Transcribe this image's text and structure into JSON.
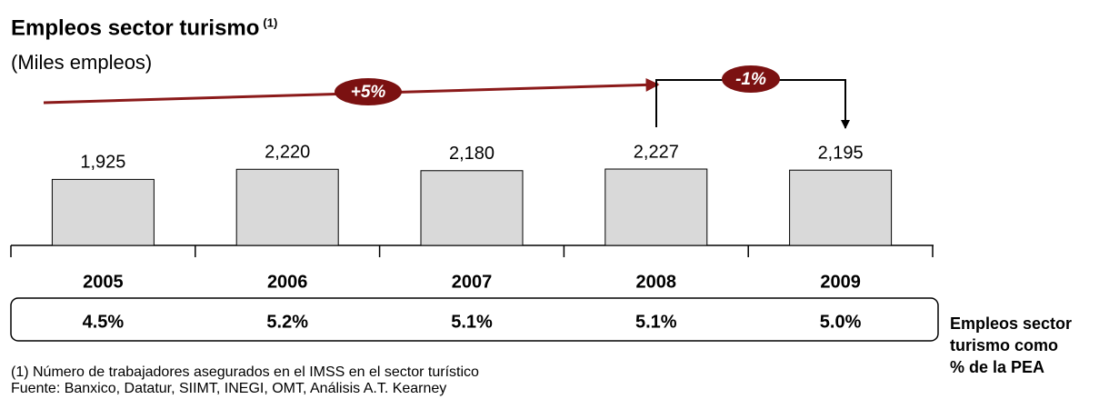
{
  "chart_data": {
    "type": "bar",
    "title": "Empleos sector turismo",
    "title_note": "(1)",
    "subtitle": "(Miles empleos)",
    "categories": [
      "2005",
      "2006",
      "2007",
      "2008",
      "2009"
    ],
    "values": [
      1925,
      2220,
      2180,
      2227,
      2195
    ],
    "value_labels": [
      "1,925",
      "2,220",
      "2,180",
      "2,227",
      "2,195"
    ],
    "color": "#d9d9d9",
    "annotations": [
      "+5%",
      "-1%"
    ],
    "share_row": {
      "label_lines": [
        "Empleos sector",
        "turismo como",
        "% de la PEA"
      ],
      "values": [
        4.5,
        5.2,
        5.1,
        5.1,
        5.0
      ],
      "value_labels": [
        "4.5%",
        "5.2%",
        "5.1%",
        "5.1%",
        "5.0%"
      ]
    },
    "footnote": "(1) Número de trabajadores asegurados en el IMSS en el sector turístico",
    "source": "Fuente: Banxico, Datatur, SIIMT, INEGI, OMT, Análisis A.T. Kearney"
  }
}
